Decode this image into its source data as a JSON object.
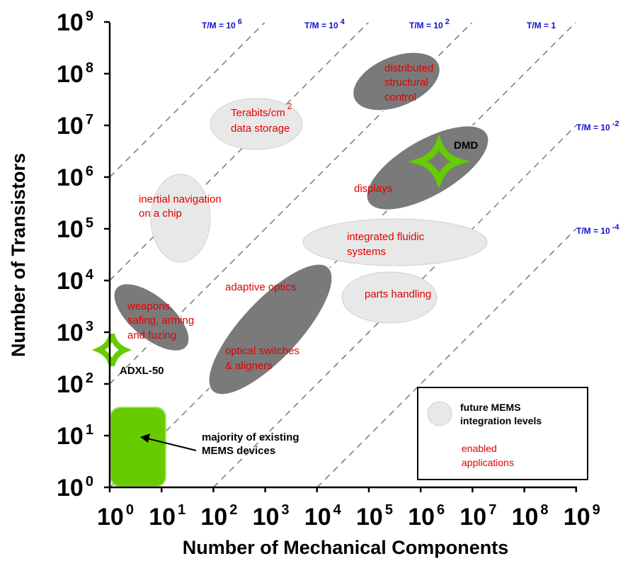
{
  "chart_data": {
    "type": "scatter",
    "xlabel": "Number of Mechanical Components",
    "ylabel": "Number of Transistors",
    "x_scale": "log",
    "y_scale": "log",
    "xlim": [
      1,
      1000000000
    ],
    "ylim": [
      1,
      1000000000
    ],
    "x_ticks": [
      {
        "base": "10",
        "exp": "0"
      },
      {
        "base": "10",
        "exp": "1"
      },
      {
        "base": "10",
        "exp": "2"
      },
      {
        "base": "10",
        "exp": "3"
      },
      {
        "base": "10",
        "exp": "4"
      },
      {
        "base": "10",
        "exp": "5"
      },
      {
        "base": "10",
        "exp": "6"
      },
      {
        "base": "10",
        "exp": "7"
      },
      {
        "base": "10",
        "exp": "8"
      },
      {
        "base": "10",
        "exp": "9"
      }
    ],
    "y_ticks": [
      {
        "base": "10",
        "exp": "0"
      },
      {
        "base": "10",
        "exp": "1"
      },
      {
        "base": "10",
        "exp": "2"
      },
      {
        "base": "10",
        "exp": "3"
      },
      {
        "base": "10",
        "exp": "4"
      },
      {
        "base": "10",
        "exp": "5"
      },
      {
        "base": "10",
        "exp": "6"
      },
      {
        "base": "10",
        "exp": "7"
      },
      {
        "base": "10",
        "exp": "8"
      },
      {
        "base": "10",
        "exp": "9"
      }
    ],
    "ratio_lines": [
      {
        "base": "T/M = 10",
        "exp": "6",
        "ratio_log10": 6
      },
      {
        "base": "T/M = 10",
        "exp": "4",
        "ratio_log10": 4
      },
      {
        "base": "T/M = 10",
        "exp": "2",
        "ratio_log10": 2
      },
      {
        "base": "T/M = 1",
        "exp": "",
        "ratio_log10": 0
      },
      {
        "base": "T/M = 10",
        "exp": "-2",
        "ratio_log10": -2
      },
      {
        "base": "T/M = 10",
        "exp": "-4",
        "ratio_log10": -4
      }
    ],
    "regions": [
      {
        "kind": "future",
        "label": [
          "Terabits/cm",
          "data storage"
        ],
        "label_sup": "2",
        "x_log10": 2.75,
        "y_log10": 6.95
      },
      {
        "kind": "future",
        "label": [
          "inertial navigation",
          "on a chip"
        ],
        "x_log10": 1.2,
        "y_log10": 5.2
      },
      {
        "kind": "future",
        "label": [
          "integrated fluidic",
          "systems"
        ],
        "x_log10": 5.35,
        "y_log10": 4.65
      },
      {
        "kind": "future",
        "label": [
          "parts handling"
        ],
        "x_log10": 5.4,
        "y_log10": 3.65
      },
      {
        "kind": "enabled",
        "label": [
          "distributed",
          "structural",
          "control"
        ],
        "x_log10": 5.7,
        "y_log10": 7.9
      },
      {
        "kind": "enabled",
        "label": [
          "displays"
        ],
        "x_log10": 6.2,
        "y_log10": 5.9
      },
      {
        "kind": "enabled",
        "label": [
          "adaptive optics",
          "optical switches",
          "& aligners"
        ],
        "x_log10": 3.0,
        "y_log10": 3.2
      },
      {
        "kind": "enabled",
        "label": [
          "weapons,",
          "safing, arming",
          "and fuzing"
        ],
        "x_log10": 0.6,
        "y_log10": 3.2
      }
    ],
    "devices": [
      {
        "name": "DMD",
        "x_log10": 6.3,
        "y_log10": 6.3,
        "marker": "green-diamond"
      },
      {
        "name": "ADXL-50",
        "x_log10": 0.08,
        "y_log10": 2.6,
        "marker": "green-diamond"
      }
    ],
    "existing_block": {
      "label": [
        "majority of existing",
        "MEMS devices"
      ],
      "x_range_log10": [
        0,
        1.05
      ],
      "y_range_log10": [
        0,
        1.5
      ]
    },
    "legend": {
      "placement": "bottom-right",
      "future": [
        "future MEMS",
        "integration levels"
      ],
      "enabled": [
        "enabled",
        "applications"
      ]
    },
    "colors": {
      "future": "#e6e6e6",
      "enabled": "#777777",
      "device": "#66cc00",
      "ratio_label": "#1010d0",
      "app_label": "#e00000"
    }
  }
}
